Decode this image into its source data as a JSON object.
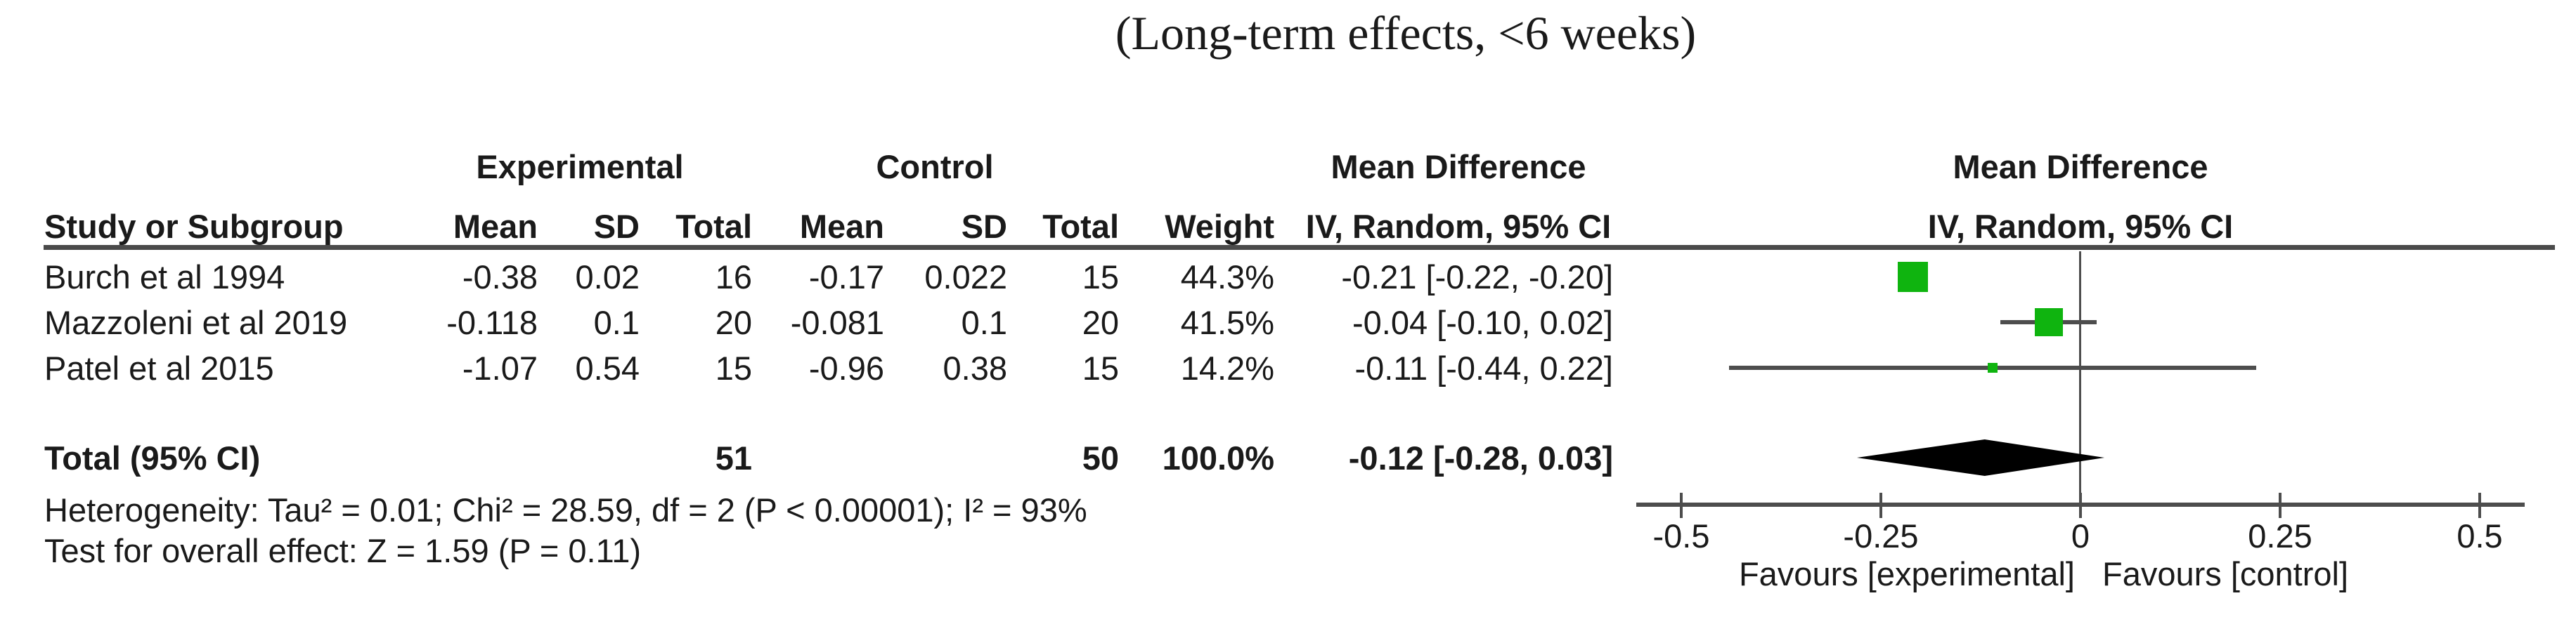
{
  "title": "(Long-term effects, <6 weeks)",
  "table": {
    "group_headers": {
      "experimental": "Experimental",
      "control": "Control",
      "md_text": "Mean Difference",
      "md_plot": "Mean Difference"
    },
    "col_headers": {
      "study": "Study or Subgroup",
      "mean_exp": "Mean",
      "sd_exp": "SD",
      "total_exp": "Total",
      "mean_ctrl": "Mean",
      "sd_ctrl": "SD",
      "total_ctrl": "Total",
      "weight": "Weight",
      "iv_text": "IV, Random, 95% CI",
      "iv_plot": "IV, Random, 95% CI"
    },
    "rows": [
      {
        "study": "Burch et al 1994",
        "mean_exp": "-0.38",
        "sd_exp": "0.02",
        "total_exp": "16",
        "mean_ctrl": "-0.17",
        "sd_ctrl": "0.022",
        "total_ctrl": "15",
        "weight": "44.3%",
        "md": "-0.21 [-0.22, -0.20]"
      },
      {
        "study": "Mazzoleni et al 2019",
        "mean_exp": "-0.118",
        "sd_exp": "0.1",
        "total_exp": "20",
        "mean_ctrl": "-0.081",
        "sd_ctrl": "0.1",
        "total_ctrl": "20",
        "weight": "41.5%",
        "md": "-0.04 [-0.10, 0.02]"
      },
      {
        "study": "Patel et al 2015",
        "mean_exp": "-1.07",
        "sd_exp": "0.54",
        "total_exp": "15",
        "mean_ctrl": "-0.96",
        "sd_ctrl": "0.38",
        "total_ctrl": "15",
        "weight": "14.2%",
        "md": "-0.11 [-0.44, 0.22]"
      }
    ],
    "total_row": {
      "label": "Total (95% CI)",
      "total_exp": "51",
      "total_ctrl": "50",
      "weight": "100.0%",
      "md": "-0.12 [-0.28, 0.03]"
    },
    "heterogeneity": "Heterogeneity: Tau² = 0.01; Chi² = 28.59, df = 2 (P < 0.00001); I² = 93%",
    "overall_effect": "Test for overall effect: Z = 1.59 (P = 0.11)"
  },
  "plot": {
    "favours_left": "Favours [experimental]",
    "favours_right": "Favours [control]",
    "marker_color": "#0fb40f",
    "line_color": "#4d4d4d",
    "diamond_color": "#000000"
  },
  "chart_data": {
    "type": "scatter",
    "subtype": "forest-plot",
    "title": "(Long-term effects, <6 weeks)",
    "effect_measure": "Mean Difference, IV, Random, 95% CI",
    "xlim": [
      -0.555,
      0.555
    ],
    "x_ticks": [
      -0.5,
      -0.25,
      0,
      0.25,
      0.5
    ],
    "x_tick_labels": [
      "-0.5",
      "-0.25",
      "0",
      "0.25",
      "0.5"
    ],
    "xlabel_left": "Favours [experimental]",
    "xlabel_right": "Favours [control]",
    "grid": false,
    "studies": [
      {
        "name": "Burch et al 1994",
        "md": -0.21,
        "ci": [
          -0.22,
          -0.2
        ],
        "weight_pct": 44.3
      },
      {
        "name": "Mazzoleni et al 2019",
        "md": -0.04,
        "ci": [
          -0.1,
          0.02
        ],
        "weight_pct": 41.5
      },
      {
        "name": "Patel et al 2015",
        "md": -0.11,
        "ci": [
          -0.44,
          0.22
        ],
        "weight_pct": 14.2
      }
    ],
    "total": {
      "name": "Total (95% CI)",
      "md": -0.12,
      "ci": [
        -0.28,
        0.03
      ],
      "weight_pct": 100.0
    }
  }
}
